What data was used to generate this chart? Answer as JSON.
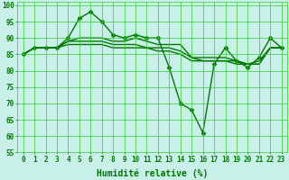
{
  "title": "",
  "xlabel": "Humidité relative (%)",
  "ylabel": "",
  "xlim": [
    -0.5,
    23.5
  ],
  "ylim": [
    55,
    101
  ],
  "yticks": [
    55,
    60,
    65,
    70,
    75,
    80,
    85,
    90,
    95,
    100
  ],
  "xticks": [
    0,
    1,
    2,
    3,
    4,
    5,
    6,
    7,
    8,
    9,
    10,
    11,
    12,
    13,
    14,
    15,
    16,
    17,
    18,
    19,
    20,
    21,
    22,
    23
  ],
  "background_color": "#c8f0e8",
  "grid_color": "#33cc33",
  "line_color": "#007700",
  "line1": [
    85,
    87,
    87,
    87,
    90,
    96,
    98,
    95,
    91,
    90,
    91,
    90,
    90,
    81,
    70,
    68,
    61,
    82,
    87,
    83,
    81,
    84,
    90,
    87
  ],
  "line2": [
    85,
    87,
    87,
    87,
    89,
    90,
    90,
    90,
    89,
    89,
    90,
    89,
    88,
    88,
    88,
    84,
    83,
    83,
    83,
    82,
    82,
    82,
    87,
    87
  ],
  "line3": [
    85,
    87,
    87,
    87,
    88,
    88,
    88,
    88,
    87,
    87,
    87,
    87,
    86,
    86,
    85,
    83,
    83,
    83,
    83,
    83,
    82,
    82,
    87,
    87
  ],
  "line4": [
    85,
    87,
    87,
    87,
    89,
    89,
    89,
    89,
    88,
    88,
    88,
    87,
    87,
    87,
    86,
    84,
    84,
    84,
    84,
    83,
    82,
    83,
    87,
    87
  ],
  "marker": "D",
  "marker_size": 2.5,
  "line_width": 1.0,
  "font_size_xlabel": 7.0,
  "font_size_ticks": 5.5
}
